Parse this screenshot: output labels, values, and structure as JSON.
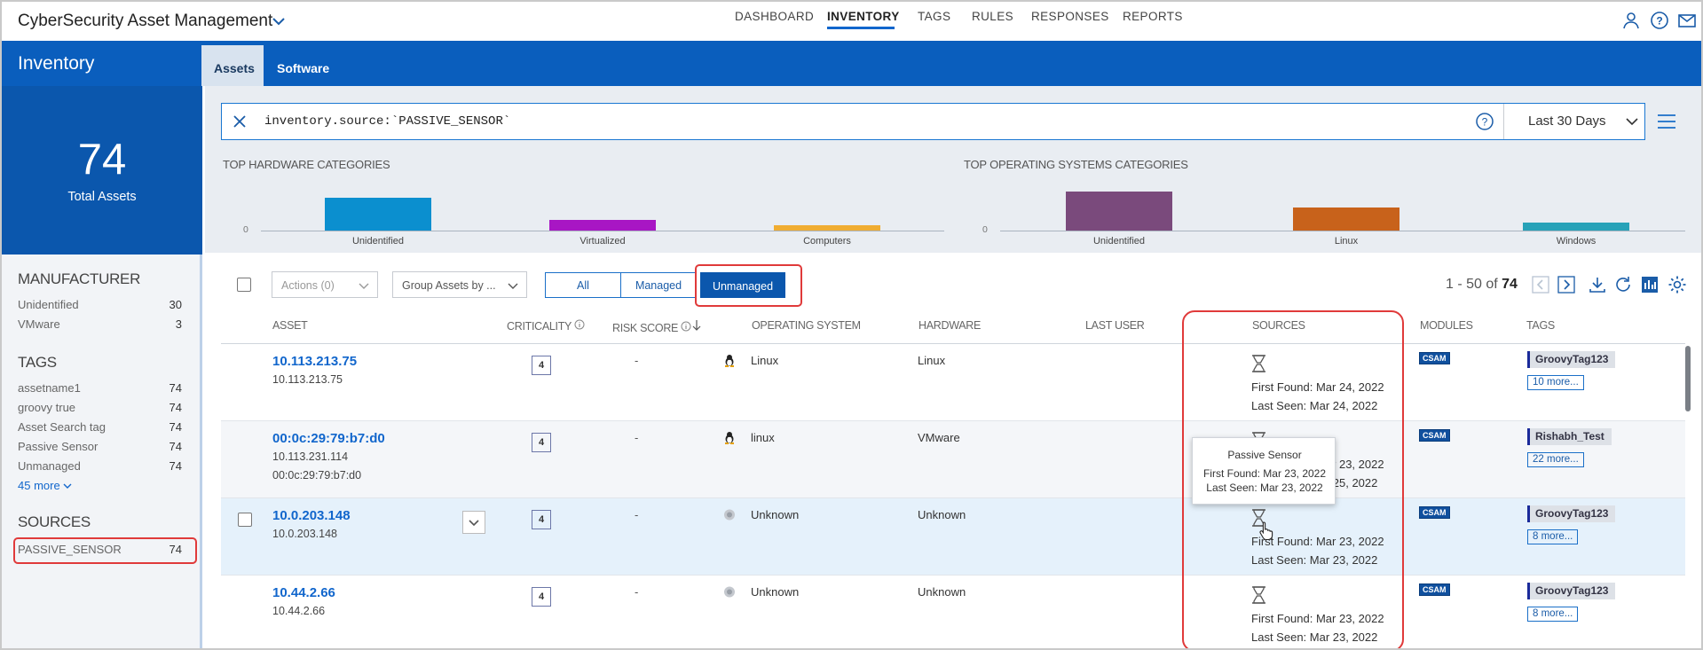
{
  "app": {
    "title": "CyberSecurity Asset Management"
  },
  "nav": {
    "items": [
      "DASHBOARD",
      "INVENTORY",
      "TAGS",
      "RULES",
      "RESPONSES",
      "REPORTS"
    ],
    "active": "INVENTORY"
  },
  "inventory": {
    "title": "Inventory",
    "tabs": [
      "Assets",
      "Software"
    ],
    "active_tab": "Assets"
  },
  "summary": {
    "total": "74",
    "total_label": "Total Assets"
  },
  "facets": {
    "manufacturer": {
      "title": "MANUFACTURER",
      "items": [
        {
          "label": "Unidentified",
          "count": "30"
        },
        {
          "label": "VMware",
          "count": "3"
        }
      ]
    },
    "tags": {
      "title": "TAGS",
      "items": [
        {
          "label": "assetname1",
          "count": "74"
        },
        {
          "label": "groovy true",
          "count": "74"
        },
        {
          "label": "Asset Search tag",
          "count": "74"
        },
        {
          "label": "Passive Sensor",
          "count": "74"
        },
        {
          "label": "Unmanaged",
          "count": "74"
        }
      ],
      "more": "45 more"
    },
    "sources": {
      "title": "SOURCES",
      "items": [
        {
          "label": "PASSIVE_SENSOR",
          "count": "74"
        }
      ]
    }
  },
  "search": {
    "query": "inventory.source:`PASSIVE_SENSOR`",
    "date_range": "Last 30 Days"
  },
  "chart_data": [
    {
      "type": "bar",
      "title": "TOP HARDWARE CATEGORIES",
      "categories": [
        "Unidentified",
        "Virtualized",
        "Computers"
      ],
      "values": [
        30,
        10,
        5
      ],
      "ylim": [
        0,
        30
      ],
      "baseline_label": "0",
      "colors": [
        "#0b8fcf",
        "#a816c4",
        "#f0ad32"
      ]
    },
    {
      "type": "bar",
      "title": "TOP OPERATING SYSTEMS CATEGORIES",
      "categories": [
        "Unidentified",
        "Linux",
        "Windows"
      ],
      "values": [
        30,
        18,
        6
      ],
      "ylim": [
        0,
        30
      ],
      "baseline_label": "0",
      "colors": [
        "#7a4a7c",
        "#c8621b",
        "#27a2b8"
      ]
    }
  ],
  "toolbar": {
    "actions": "Actions (0)",
    "group_by": "Group Assets by ...",
    "filters": [
      "All",
      "Managed",
      "Unmanaged"
    ],
    "active_filter": "Unmanaged",
    "pager": {
      "range": "1 - 50 of",
      "total": "74"
    }
  },
  "table": {
    "columns": [
      "ASSET",
      "CRITICALITY",
      "RISK SCORE",
      "OPERATING SYSTEM",
      "HARDWARE",
      "LAST USER",
      "SOURCES",
      "MODULES",
      "TAGS"
    ],
    "rows": [
      {
        "name": "10.113.213.75",
        "sub": [
          "10.113.213.75"
        ],
        "criticality": "4",
        "risk": "-",
        "os": "Linux",
        "os_icon": "linux-penguin-icon",
        "hardware": "Linux",
        "first_found": "First Found: Mar 24, 2022",
        "last_seen": "Last Seen: Mar 24, 2022",
        "module": "CSAM",
        "tag": "GroovyTag123",
        "more": "10 more..."
      },
      {
        "name": "00:0c:29:79:b7:d0",
        "sub": [
          "10.113.231.114",
          "00:0c:29:79:b7:d0"
        ],
        "criticality": "4",
        "risk": "-",
        "os": "linux",
        "os_icon": "linux-penguin-icon",
        "hardware": "VMware",
        "first_found": "First Found: Mar 23, 2022",
        "last_seen": "Last Seen: Mar 25, 2022",
        "module": "CSAM",
        "tag": "Rishabh_Test",
        "more": "22 more..."
      },
      {
        "name": "10.0.203.148",
        "sub": [
          "10.0.203.148"
        ],
        "criticality": "4",
        "risk": "-",
        "os": "Unknown",
        "os_icon": "unknown-os-icon",
        "hardware": "Unknown",
        "first_found": "First Found: Mar 23, 2022",
        "last_seen": "Last Seen: Mar 23, 2022",
        "module": "CSAM",
        "tag": "GroovyTag123",
        "more": "8 more..."
      },
      {
        "name": "10.44.2.66",
        "sub": [
          "10.44.2.66"
        ],
        "criticality": "4",
        "risk": "-",
        "os": "Unknown",
        "os_icon": "unknown-os-icon",
        "hardware": "Unknown",
        "first_found": "First Found: Mar 23, 2022",
        "last_seen": "Last Seen: Mar 23, 2022",
        "module": "CSAM",
        "tag": "GroovyTag123",
        "more": "8 more..."
      }
    ]
  },
  "tooltip": {
    "title": "Passive Sensor",
    "first_found": "First Found: Mar 23, 2022",
    "last_seen": "Last Seen: Mar 23, 2022"
  }
}
